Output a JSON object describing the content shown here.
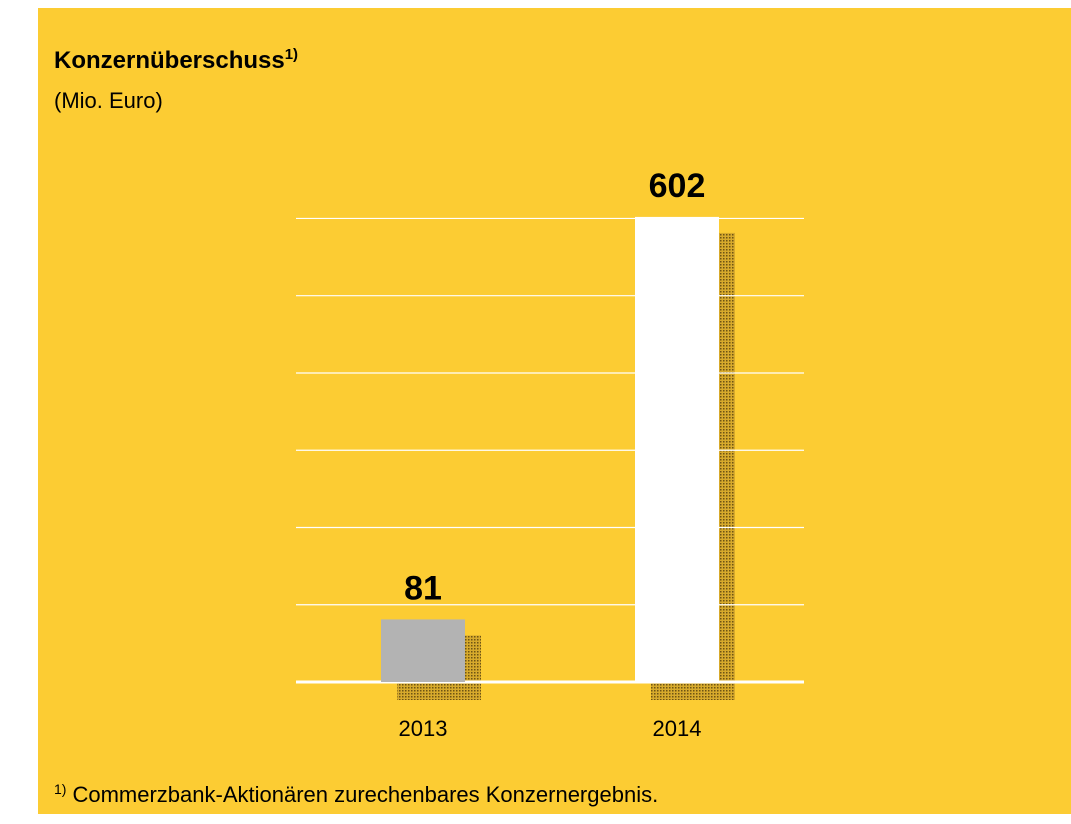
{
  "chart_data": {
    "type": "bar",
    "title": "Konzernüberschuss",
    "title_note": "1)",
    "subtitle": "(Mio. Euro)",
    "categories": [
      "2013",
      "2014"
    ],
    "values": [
      81,
      602
    ],
    "colors": [
      "#b3b3b3",
      "#ffffff"
    ],
    "ylim": [
      0,
      620
    ],
    "yticks": [
      0,
      100,
      200,
      300,
      400,
      500,
      600
    ],
    "grid": true,
    "footnote_marker": "1)",
    "footnote": "Commerzbank-Aktionären zurechenbares Konzernergebnis."
  }
}
